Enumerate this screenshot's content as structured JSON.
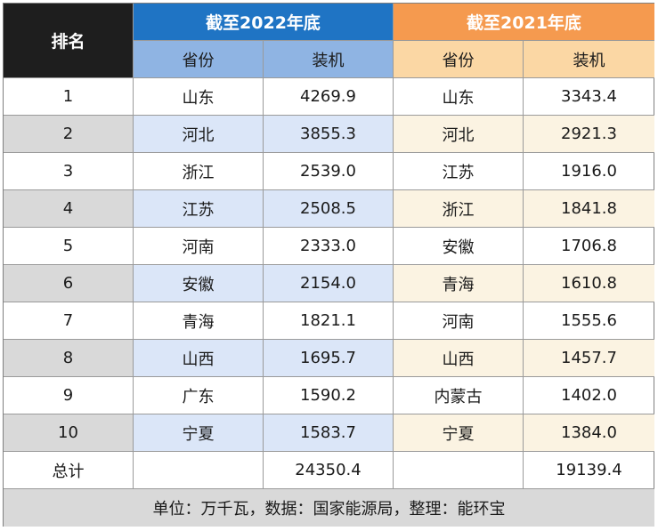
{
  "header": {
    "rank": "排名",
    "group_2022": "截至2022年底",
    "group_2021": "截至2021年底",
    "province": "省份",
    "capacity": "装机"
  },
  "rows": [
    {
      "rank": "1",
      "p2022": "山东",
      "v2022": "4269.9",
      "p2021": "山东",
      "v2021": "3343.4"
    },
    {
      "rank": "2",
      "p2022": "河北",
      "v2022": "3855.3",
      "p2021": "河北",
      "v2021": "2921.3"
    },
    {
      "rank": "3",
      "p2022": "浙江",
      "v2022": "2539.0",
      "p2021": "江苏",
      "v2021": "1916.0"
    },
    {
      "rank": "4",
      "p2022": "江苏",
      "v2022": "2508.5",
      "p2021": "浙江",
      "v2021": "1841.8"
    },
    {
      "rank": "5",
      "p2022": "河南",
      "v2022": "2333.0",
      "p2021": "安徽",
      "v2021": "1706.8"
    },
    {
      "rank": "6",
      "p2022": "安徽",
      "v2022": "2154.0",
      "p2021": "青海",
      "v2021": "1610.8"
    },
    {
      "rank": "7",
      "p2022": "青海",
      "v2022": "1821.1",
      "p2021": "河南",
      "v2021": "1555.6"
    },
    {
      "rank": "8",
      "p2022": "山西",
      "v2022": "1695.7",
      "p2021": "山西",
      "v2021": "1457.7"
    },
    {
      "rank": "9",
      "p2022": "广东",
      "v2022": "1590.2",
      "p2021": "内蒙古",
      "v2021": "1402.0"
    },
    {
      "rank": "10",
      "p2022": "宁夏",
      "v2022": "1583.7",
      "p2021": "宁夏",
      "v2021": "1384.0"
    }
  ],
  "total": {
    "label": "总计",
    "v2022": "24350.4",
    "v2021": "19139.4"
  },
  "footer": "单位：万千瓦，数据：国家能源局，整理：能环宝",
  "colors": {
    "rank_header": "#1e1e1e",
    "header_2022": "#1f74c4",
    "header_2021": "#f59a4f",
    "sub_2022": "#8fb4e3",
    "sub_2021": "#fbd7a4"
  }
}
